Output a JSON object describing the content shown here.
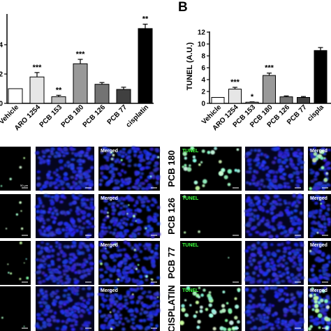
{
  "panel_b_label": "B",
  "chart_data": [
    {
      "type": "bar",
      "panel": "A",
      "categories": [
        "Vehicle",
        "ARO 1254",
        "PCB 153",
        "PCB 180",
        "PCB 126",
        "PCB 77",
        "cisplatin"
      ],
      "values": [
        1.0,
        1.8,
        0.45,
        2.7,
        1.3,
        0.95,
        5.1
      ],
      "errors": [
        0.0,
        0.3,
        0.1,
        0.3,
        0.12,
        0.15,
        0.3
      ],
      "significance": [
        "",
        "***",
        "**",
        "***",
        "",
        "",
        "**"
      ],
      "bar_colors": [
        "#ffffff",
        "#e6e6e6",
        "#bfbfbf",
        "#999999",
        "#737373",
        "#404040",
        "#000000"
      ],
      "ylim": [
        0,
        6
      ],
      "yticks": [
        "4",
        "2",
        "0"
      ],
      "ylabel": ""
    },
    {
      "type": "bar",
      "panel": "B",
      "categories": [
        "Vehicle",
        "ARO 1254",
        "PCB 153",
        "PCB 180",
        "PCB 126",
        "PCB 77",
        "cispla"
      ],
      "values": [
        1.0,
        2.4,
        0.2,
        4.7,
        1.1,
        1.0,
        8.9
      ],
      "errors": [
        0.0,
        0.3,
        0.05,
        0.4,
        0.15,
        0.15,
        0.5
      ],
      "significance": [
        "",
        "***",
        "*",
        "***",
        "",
        "",
        ""
      ],
      "bar_colors": [
        "#ffffff",
        "#e6e6e6",
        "#bfbfbf",
        "#999999",
        "#737373",
        "#404040",
        "#000000"
      ],
      "ylim": [
        0,
        12
      ],
      "yticks": [
        "12",
        "10",
        "8",
        "6",
        "4",
        "2",
        "0"
      ],
      "ylabel": "TUNEL (A.U.)"
    }
  ],
  "micrographs": {
    "left": {
      "row_labels": [
        "",
        "",
        "",
        ""
      ],
      "tiles": [
        [
          "",
          "",
          "Merged"
        ],
        [
          "",
          "",
          "Merged"
        ],
        [
          "",
          "",
          "Merged"
        ],
        [
          "",
          "",
          "Merged"
        ]
      ]
    },
    "right": {
      "row_labels": [
        "PCB 180",
        "PCB 126",
        "PCB 77",
        "CISPLATIN"
      ],
      "tiles": [
        [
          "TUNEL",
          "",
          "Merged"
        ],
        [
          "TUNEL",
          "",
          "Merged"
        ],
        [
          "TUNEL",
          "",
          "Merged"
        ],
        [
          "TUNEL",
          "",
          "Merged"
        ]
      ]
    },
    "scale_bar_label": "50 µm"
  }
}
